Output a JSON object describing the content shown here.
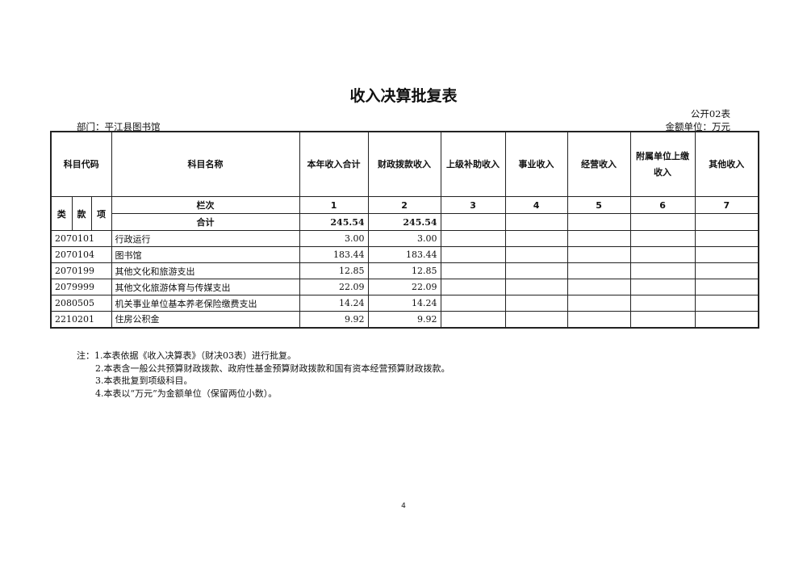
{
  "title": "收入决算批复表",
  "table_no": "公开02表",
  "department": "部门：平江县图书馆",
  "unit": "金额单位：万元",
  "headers": {
    "code": "科目代码",
    "name": "科目名称",
    "cols": [
      "本年收入合计",
      "财政拨款收入",
      "上级补助收入",
      "事业收入",
      "经营收入",
      "附属单位上缴收入",
      "其他收入"
    ],
    "lei": "类",
    "kuan": "款",
    "xiang": "项"
  },
  "index_row": {
    "label": "栏次",
    "nums": [
      "1",
      "2",
      "3",
      "4",
      "5",
      "6",
      "7"
    ]
  },
  "total_row": {
    "label": "合计",
    "values": [
      "245.54",
      "245.54",
      "",
      "",
      "",
      "",
      ""
    ]
  },
  "rows": [
    {
      "code": "2070101",
      "name": "行政运行",
      "total": "3.00",
      "fiscal": "3.00"
    },
    {
      "code": "2070104",
      "name": "图书馆",
      "total": "183.44",
      "fiscal": "183.44"
    },
    {
      "code": "2070199",
      "name": "其他文化和旅游支出",
      "total": "12.85",
      "fiscal": "12.85"
    },
    {
      "code": "2079999",
      "name": "其他文化旅游体育与传媒支出",
      "total": "22.09",
      "fiscal": "22.09"
    },
    {
      "code": "2080505",
      "name": "机关事业单位基本养老保险缴费支出",
      "total": "14.24",
      "fiscal": "14.24"
    },
    {
      "code": "2210201",
      "name": "住房公积金",
      "total": "9.92",
      "fiscal": "9.92"
    }
  ],
  "notes": [
    "注：1.本表依据《收入决算表》（财决03表）进行批复。",
    "2.本表含一般公共预算财政拨款、政府性基金预算财政拨款和国有资本经营预算财政拨款。",
    "3.本表批复到项级科目。",
    "4.本表以“万元”为金额单位（保留两位小数）。"
  ],
  "page_number": "4"
}
